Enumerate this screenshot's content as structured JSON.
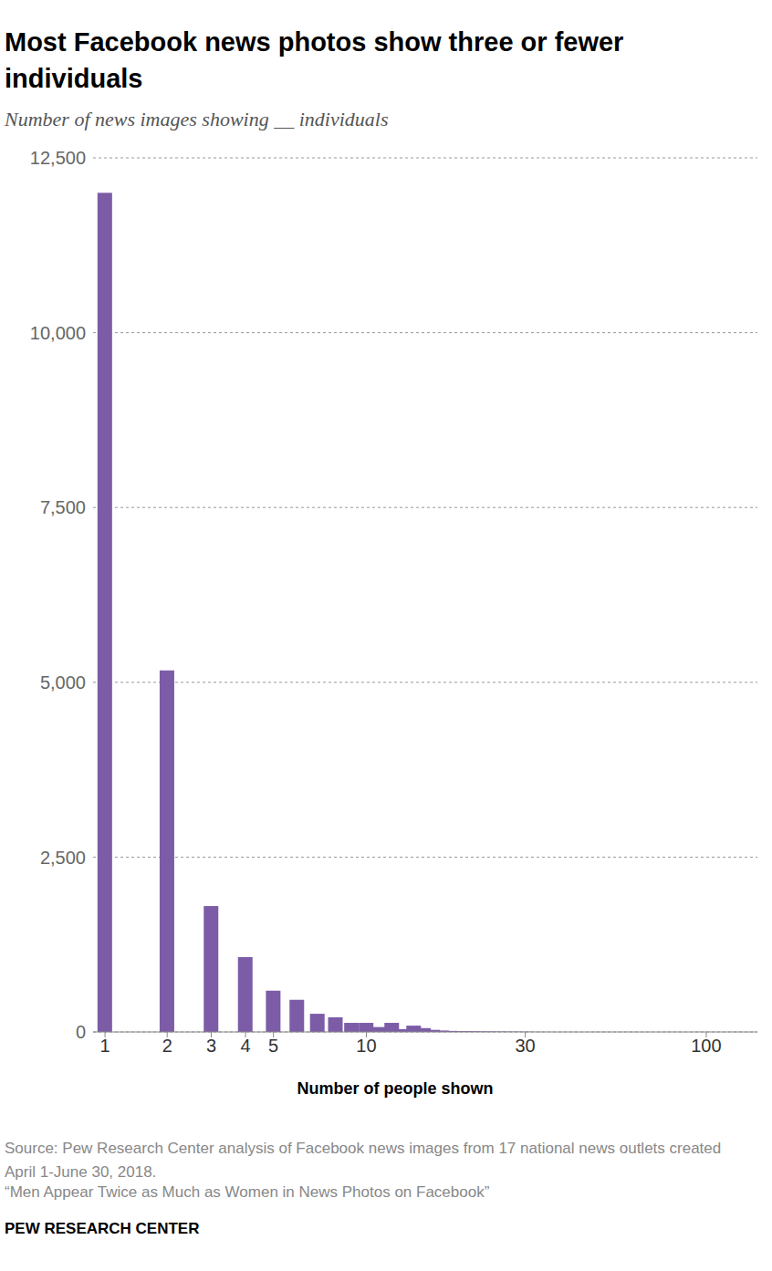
{
  "chart_data": {
    "type": "bar",
    "title": "Most Facebook news photos show three or fewer individuals",
    "subtitle": "Number of news images showing __ individuals",
    "x_label": "Number of people shown",
    "source": "Source: Pew Research Center analysis of Facebook news images from 17 national news outlets created April 1-June 30, 2018.",
    "note": "“Men Appear Twice as Much as Women in News Photos on Facebook”",
    "credit": "PEW RESEARCH CENTER",
    "x": [
      1,
      2,
      3,
      4,
      5,
      6,
      7,
      8,
      9,
      10,
      11,
      12,
      13,
      14,
      15,
      16,
      17,
      18,
      19,
      20,
      21,
      22,
      23,
      24,
      25,
      26,
      27,
      28,
      29,
      30,
      32,
      35,
      40,
      50,
      60,
      80,
      100,
      120
    ],
    "values": [
      12000,
      5170,
      1800,
      1070,
      590,
      460,
      260,
      210,
      130,
      130,
      70,
      130,
      40,
      90,
      55,
      30,
      20,
      15,
      10,
      10,
      8,
      6,
      5,
      4,
      4,
      3,
      3,
      2,
      2,
      2,
      2,
      1,
      1,
      1,
      1,
      1,
      1,
      1
    ],
    "color": "#7c5ca6",
    "log": "x",
    "xlim": [
      0.85,
      140
    ],
    "xticks": [
      1,
      2,
      3,
      4,
      5,
      10,
      30,
      100
    ],
    "ylim": [
      0,
      12500
    ],
    "yticks": [
      0,
      {
        "value": 2500,
        "label": "2,500"
      },
      {
        "value": 5000,
        "label": "5,000"
      },
      {
        "value": 7500,
        "label": "7,500"
      },
      {
        "value": 10000,
        "label": "10,000"
      },
      {
        "value": 12500,
        "label": "12,500"
      }
    ],
    "grid": true
  }
}
